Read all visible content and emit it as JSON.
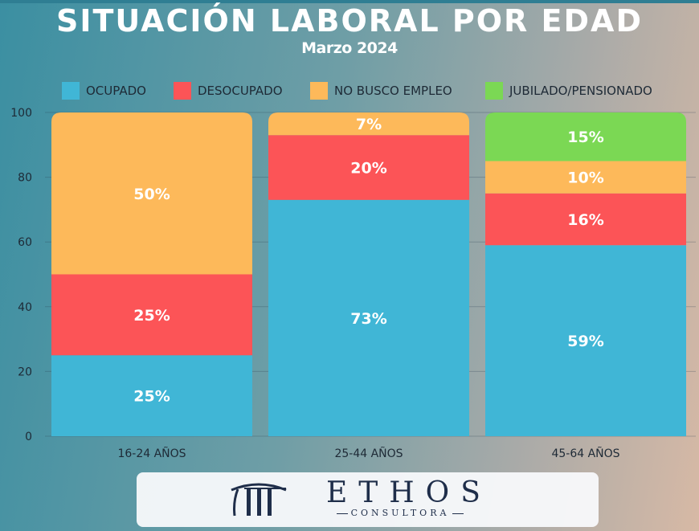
{
  "chart_data": {
    "type": "bar",
    "stacked": true,
    "title": "SITUACIÓN LABORAL POR EDAD",
    "subtitle": "Marzo 2024",
    "categories": [
      "16-24 AÑOS",
      "25-44 AÑOS",
      "45-64 AÑOS"
    ],
    "series": [
      {
        "name": "OCUPADO",
        "color": "#40b6d6",
        "values": [
          25,
          73,
          59
        ],
        "labels": [
          "25%",
          "73%",
          "59%"
        ]
      },
      {
        "name": "DESOCUPADO",
        "color": "#fc5457",
        "values": [
          25,
          20,
          16
        ],
        "labels": [
          "25%",
          "20%",
          "16%"
        ]
      },
      {
        "name": "NO BUSCO EMPLEO",
        "color": "#fdb95a",
        "values": [
          50,
          7,
          10
        ],
        "labels": [
          "50%",
          "7%",
          "10%"
        ]
      },
      {
        "name": "JUBILADO/PENSIONADO",
        "color": "#7bd854",
        "values": [
          0,
          0,
          15
        ],
        "labels": [
          "",
          "",
          "15%"
        ]
      }
    ],
    "ylim": [
      0,
      100
    ],
    "yticks": [
      "0",
      "20",
      "40",
      "60",
      "80",
      "100"
    ],
    "grid": true,
    "legend_position": "top"
  },
  "logo": {
    "name": "ETHOS",
    "tagline": "CONSULTORA",
    "icon": "columns-logo-icon"
  }
}
